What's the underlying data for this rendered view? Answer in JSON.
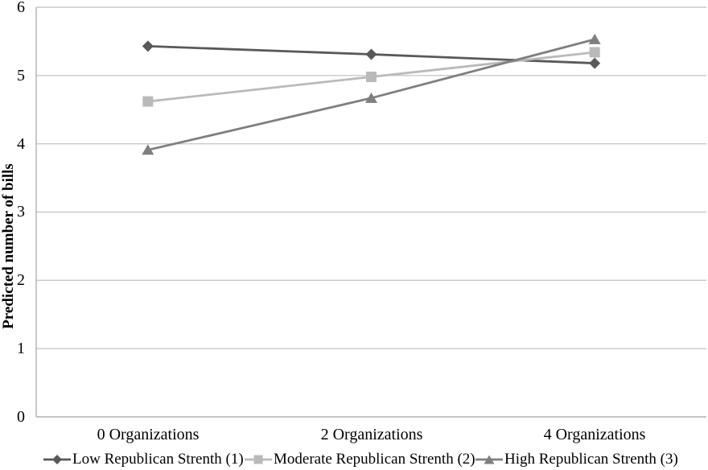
{
  "chart_data": {
    "type": "line",
    "title": "",
    "xlabel": "",
    "ylabel": "Predicted number of bills",
    "categories": [
      "0 Organizations",
      "2 Organizations",
      "4 Organizations"
    ],
    "series": [
      {
        "name": "Low Republican Strenth (1)",
        "values": [
          5.43,
          5.31,
          5.18
        ],
        "color": "#595959",
        "marker": "diamond"
      },
      {
        "name": "Moderate Republican Strenth (2)",
        "values": [
          4.62,
          4.98,
          5.34
        ],
        "color": "#bababa",
        "marker": "square"
      },
      {
        "name": "High Republican Strenth (3)",
        "values": [
          3.91,
          4.67,
          5.53
        ],
        "color": "#7f7f7f",
        "marker": "triangle"
      }
    ],
    "ylim": [
      0,
      6
    ],
    "ytick_labels": [
      "0",
      "1",
      "2",
      "3",
      "4",
      "5",
      "6"
    ],
    "grid": true,
    "legend_position": "bottom",
    "colors": {
      "gridline": "#c9c9c9",
      "axis": "#b0b0b0",
      "text": "#000000",
      "background": "#ffffff"
    }
  }
}
